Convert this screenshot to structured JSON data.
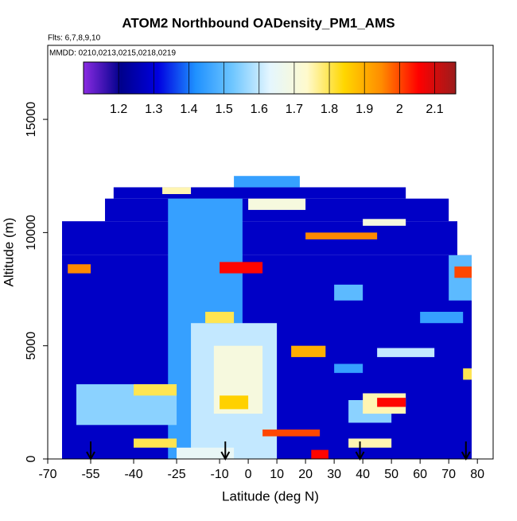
{
  "chart_data": {
    "type": "heatmap",
    "title": "ATOM2 Northbound OADensity_PM1_AMS",
    "subtitle": "Flts: 6,7,8,9,10",
    "annotation": "MMDD: 0210,0213,0215,0218,0219",
    "x_label": "Latitude (deg N)",
    "y_label": "Altitude (m)",
    "xlim": [
      -70,
      85.5
    ],
    "ylim": [
      0,
      18270
    ],
    "xticks": [
      -70,
      -55,
      -40,
      -25,
      -10,
      0,
      10,
      20,
      30,
      40,
      50,
      60,
      70,
      80
    ],
    "yticks": [
      0,
      5000,
      10000,
      15000
    ],
    "colorbar": {
      "lim": [
        1.1,
        2.16
      ],
      "ticks": [
        1.2,
        1.3,
        1.4,
        1.5,
        1.6,
        1.7,
        1.8,
        1.9,
        2.0,
        2.1
      ],
      "colors": [
        "#8a2be2",
        "#00008b",
        "#0000e0",
        "#1e90ff",
        "#6ec6ff",
        "#e4f6ff",
        "#fffacd",
        "#ffd700",
        "#ff8c00",
        "#ff0000",
        "#9b1c1c"
      ]
    },
    "arrows": [
      -55,
      -8,
      39,
      76
    ],
    "cells": [
      [
        -65,
        78,
        0,
        9000,
        1.28
      ],
      [
        -65,
        73,
        9000,
        10500,
        1.28
      ],
      [
        -50,
        70,
        10500,
        11500,
        1.28
      ],
      [
        -47,
        55,
        11500,
        12000,
        1.28
      ],
      [
        -5,
        18,
        12000,
        12500,
        1.45
      ],
      [
        -28,
        -2,
        0,
        11500,
        1.45
      ],
      [
        -20,
        10,
        0,
        6000,
        1.6
      ],
      [
        -12,
        5,
        2000,
        5000,
        1.7
      ],
      [
        -60,
        -25,
        1500,
        3300,
        1.55
      ],
      [
        -40,
        -25,
        2800,
        3300,
        1.8
      ],
      [
        -63,
        -55,
        8200,
        8600,
        1.95
      ],
      [
        -10,
        5,
        8200,
        8700,
        2.05
      ],
      [
        -10,
        0,
        2200,
        2800,
        1.85
      ],
      [
        5,
        25,
        1000,
        1300,
        2.0
      ],
      [
        22,
        28,
        0,
        400,
        2.05
      ],
      [
        35,
        50,
        1600,
        2600,
        1.55
      ],
      [
        40,
        55,
        2000,
        2900,
        1.75
      ],
      [
        45,
        55,
        2300,
        2700,
        2.05
      ],
      [
        -15,
        -5,
        6000,
        6500,
        1.8
      ],
      [
        15,
        27,
        4500,
        5000,
        1.9
      ],
      [
        20,
        45,
        9700,
        10000,
        1.95
      ],
      [
        40,
        55,
        10300,
        10600,
        1.7
      ],
      [
        60,
        75,
        6000,
        6500,
        1.45
      ],
      [
        70,
        78,
        7000,
        9000,
        1.5
      ],
      [
        72,
        78,
        8000,
        8500,
        2.0
      ],
      [
        75,
        78,
        3500,
        4000,
        1.8
      ],
      [
        30,
        40,
        7000,
        7700,
        1.5
      ],
      [
        -25,
        -5,
        0,
        500,
        1.65
      ],
      [
        -40,
        -25,
        500,
        900,
        1.8
      ],
      [
        35,
        50,
        500,
        900,
        1.75
      ],
      [
        0,
        20,
        11000,
        11500,
        1.7
      ],
      [
        -30,
        -20,
        11700,
        12000,
        1.75
      ],
      [
        30,
        40,
        3800,
        4200,
        1.45
      ],
      [
        45,
        65,
        4500,
        4900,
        1.6
      ]
    ]
  }
}
